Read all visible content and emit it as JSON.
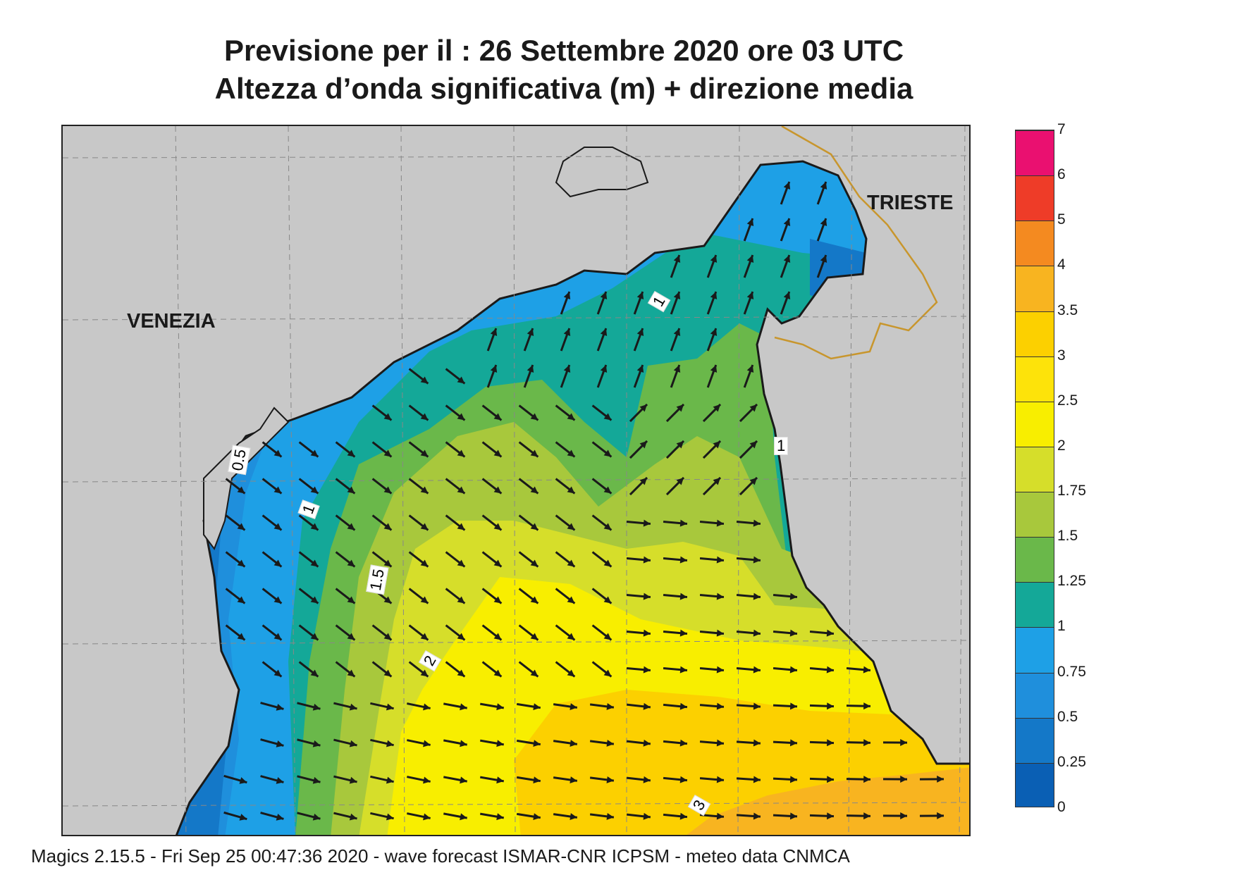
{
  "title_line1": "Previsione per il  :  26 Settembre 2020   ore 03 UTC",
  "title_line2": "Altezza d’onda significativa (m) + direzione media",
  "cities": {
    "venezia": "VENEZIA",
    "trieste": "TRIESTE"
  },
  "contour_labels": [
    "0.5",
    "1",
    "1",
    "1",
    "1.5",
    "2",
    "3"
  ],
  "colorbar": {
    "ticks": [
      "0",
      "0.25",
      "0.5",
      "0.75",
      "1",
      "1.25",
      "1.5",
      "1.75",
      "2",
      "2.5",
      "3",
      "3.5",
      "4",
      "5",
      "6",
      "7"
    ],
    "colors": [
      "#0a5fb4",
      "#1478c8",
      "#1f8fdc",
      "#1ea0e6",
      "#14a898",
      "#6ab84a",
      "#a8c83c",
      "#d6de2a",
      "#f8ee00",
      "#fde30a",
      "#fcd000",
      "#f8b420",
      "#f48a20",
      "#ee3c28",
      "#ea1070"
    ]
  },
  "colors": {
    "land": "#c8c8c8",
    "coast": "#1a1a1a",
    "border": "#c8962d"
  },
  "footer": "Magics 2.15.5 - Fri Sep 25 00:47:36 2020 - wave forecast  ISMAR-CNR  ICPSM - meteo data   CNMCA"
}
